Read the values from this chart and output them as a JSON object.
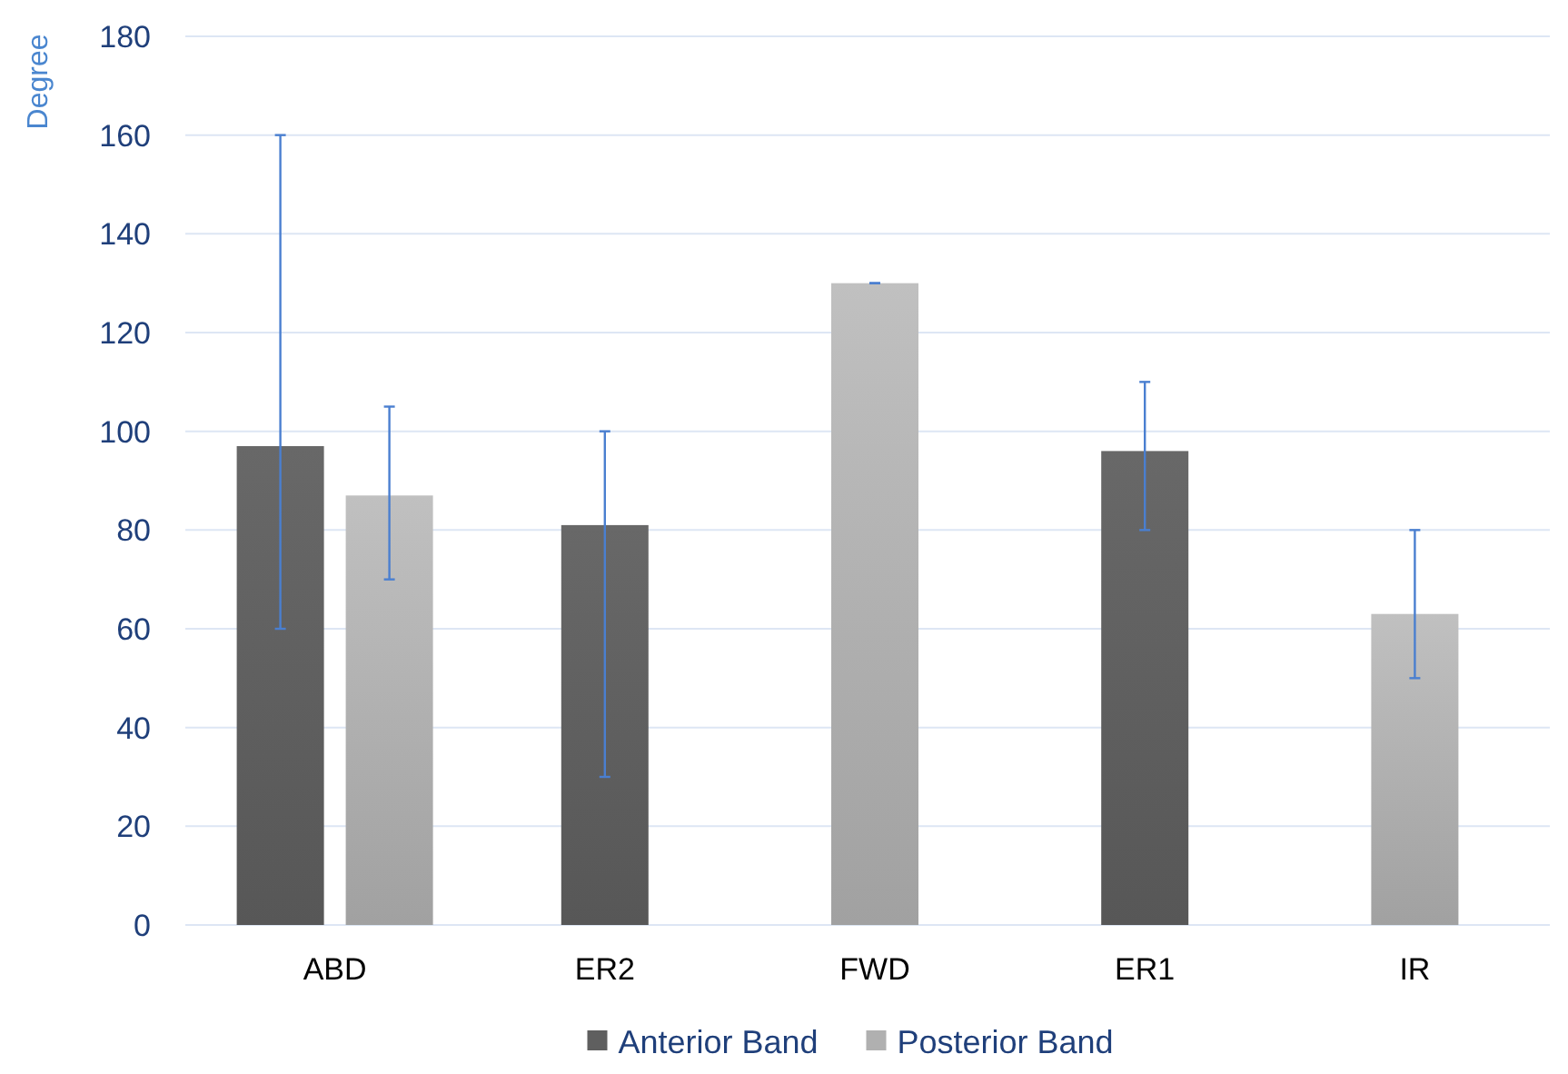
{
  "chart_data": {
    "type": "bar",
    "ylabel": "Degree",
    "categories": [
      "ABD",
      "ER2",
      "FWD",
      "ER1",
      "IR"
    ],
    "series": [
      {
        "name": "Anterior Band",
        "color": "#5f5f5f",
        "values": [
          97,
          81,
          null,
          96,
          null
        ],
        "errors": [
          [
            60,
            160
          ],
          [
            30,
            100
          ],
          null,
          [
            80,
            110
          ],
          null
        ]
      },
      {
        "name": "Posterior Band",
        "color": "#b0b0b0",
        "values": [
          87,
          null,
          130,
          null,
          63
        ],
        "errors": [
          [
            70,
            105
          ],
          null,
          [
            130,
            130
          ],
          null,
          [
            50,
            80
          ]
        ]
      }
    ],
    "ylim": [
      0,
      180
    ],
    "yticks": [
      0,
      20,
      40,
      60,
      80,
      100,
      120,
      140,
      160,
      180
    ],
    "grid": "y",
    "legend": "bottom"
  }
}
